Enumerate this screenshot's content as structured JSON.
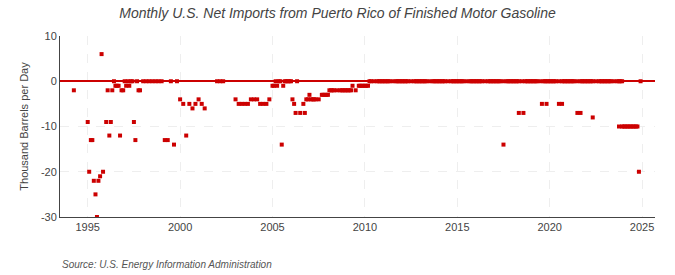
{
  "chart_data": {
    "type": "scatter",
    "title": "Monthly U.S. Net Imports from Puerto Rico of Finished Motor Gasoline",
    "ylabel": "Thousand Barrels per Day",
    "annotations": [
      "Source: U.S. Energy Information Administration"
    ],
    "color": "#cc0000",
    "marker": "square",
    "grid": true,
    "xlim": [
      1993.5,
      2025.7
    ],
    "ylim": [
      -30,
      10
    ],
    "xticks": [
      1995,
      2000,
      2005,
      2010,
      2015,
      2020,
      2025
    ],
    "yticks": [
      -30,
      -20,
      -10,
      0,
      10
    ],
    "x": [
      1994.25,
      1995.0,
      1995.08,
      1995.17,
      1995.25,
      1995.33,
      1995.42,
      1995.5,
      1995.58,
      1995.67,
      1995.75,
      1995.83,
      1996.0,
      1996.08,
      1996.17,
      1996.25,
      1996.33,
      1996.42,
      1996.5,
      1996.58,
      1996.67,
      1996.75,
      1996.83,
      1996.92,
      1997.0,
      1997.08,
      1997.17,
      1997.25,
      1997.33,
      1997.42,
      1997.5,
      1997.58,
      1997.67,
      1997.75,
      1997.83,
      1998.0,
      1998.17,
      1998.33,
      1998.5,
      1998.67,
      1998.83,
      1999.0,
      1999.17,
      1999.33,
      1999.5,
      1999.67,
      1999.83,
      2000.0,
      2000.17,
      2000.33,
      2000.5,
      2000.67,
      2000.83,
      2001.0,
      2001.17,
      2001.33,
      2002.0,
      2002.17,
      2002.33,
      2003.0,
      2003.17,
      2003.33,
      2003.5,
      2003.67,
      2003.83,
      2004.0,
      2004.17,
      2004.33,
      2004.5,
      2004.67,
      2004.83,
      2005.0,
      2005.08,
      2005.17,
      2005.25,
      2005.33,
      2005.42,
      2005.5,
      2005.58,
      2005.67,
      2005.75,
      2005.83,
      2005.92,
      2006.0,
      2006.08,
      2006.17,
      2006.25,
      2006.33,
      2006.5,
      2006.67,
      2006.75,
      2006.83,
      2006.92,
      2007.0,
      2007.08,
      2007.17,
      2007.25,
      2007.33,
      2007.5,
      2007.67,
      2007.75,
      2007.83,
      2007.92,
      2008.0,
      2008.08,
      2008.17,
      2008.25,
      2008.33,
      2008.5,
      2008.67,
      2008.75,
      2008.83,
      2008.92,
      2009.0,
      2009.08,
      2009.17,
      2009.25,
      2009.33,
      2009.5,
      2009.67,
      2009.75,
      2009.83,
      2009.92,
      2010.0,
      2010.08,
      2010.17,
      2010.25,
      2010.33,
      2010.5,
      2010.67,
      2010.75,
      2010.83,
      2010.92,
      2011.0,
      2011.08,
      2011.17,
      2011.25,
      2011.33,
      2011.5,
      2011.67,
      2011.75,
      2011.83,
      2011.92,
      2012.0,
      2012.08,
      2012.17,
      2012.25,
      2012.33,
      2012.5,
      2012.67,
      2012.75,
      2012.83,
      2012.92,
      2013.0,
      2013.08,
      2013.17,
      2013.25,
      2013.33,
      2013.5,
      2013.67,
      2013.75,
      2013.83,
      2013.92,
      2014.0,
      2014.08,
      2014.17,
      2014.25,
      2014.33,
      2014.5,
      2014.67,
      2014.75,
      2014.83,
      2014.92,
      2015.0,
      2015.08,
      2015.17,
      2015.25,
      2015.33,
      2015.5,
      2015.67,
      2015.75,
      2015.83,
      2015.92,
      2016.0,
      2016.08,
      2016.17,
      2016.25,
      2016.33,
      2016.5,
      2016.67,
      2016.75,
      2016.83,
      2016.92,
      2017.0,
      2017.08,
      2017.17,
      2017.25,
      2017.33,
      2017.5,
      2017.67,
      2017.75,
      2017.83,
      2017.92,
      2018.0,
      2018.08,
      2018.17,
      2018.25,
      2018.33,
      2018.5,
      2018.67,
      2018.75,
      2018.83,
      2018.92,
      2019.0,
      2019.08,
      2019.17,
      2019.25,
      2019.33,
      2019.5,
      2019.67,
      2019.75,
      2019.83,
      2019.92,
      2020.0,
      2020.08,
      2020.17,
      2020.25,
      2020.33,
      2020.5,
      2020.67,
      2020.75,
      2020.83,
      2020.92,
      2021.0,
      2021.08,
      2021.17,
      2021.25,
      2021.33,
      2021.5,
      2021.67,
      2021.75,
      2021.83,
      2021.92,
      2022.0,
      2022.08,
      2022.17,
      2022.25,
      2022.33,
      2022.5,
      2022.67,
      2022.75,
      2022.83,
      2022.92,
      2023.0,
      2023.08,
      2023.17,
      2023.25,
      2023.33,
      2023.5,
      2023.67,
      2023.75,
      2023.83,
      2023.92,
      2017.5,
      2018.33,
      2018.58,
      2019.58,
      2019.83,
      2020.5,
      2020.67,
      2021.5,
      2021.67,
      2022.33,
      2023.75,
      2023.92,
      2024.0,
      2024.08,
      2024.17,
      2024.25,
      2024.33,
      2024.42,
      2024.5,
      2024.58,
      2024.67,
      2024.75,
      2024.83,
      2024.92
    ],
    "values": [
      -2.0,
      -9.0,
      -20.0,
      -13.0,
      -13.0,
      -22.0,
      -25.0,
      -30.0,
      -22.0,
      -21.0,
      6.0,
      -20.0,
      -9.0,
      -2.0,
      -12.0,
      -9.0,
      -2.0,
      0.0,
      -1.0,
      -1.0,
      -1.0,
      -12.0,
      -2.0,
      -2.0,
      0.0,
      -1.0,
      0.0,
      -1.0,
      0.0,
      0.0,
      -9.0,
      -13.0,
      0.0,
      -2.0,
      -2.0,
      0.0,
      0.0,
      0.0,
      0.0,
      0.0,
      0.0,
      0.0,
      -13.0,
      -13.0,
      0.0,
      -14.0,
      0.0,
      -4.0,
      -5.0,
      -12.0,
      -5.0,
      -6.0,
      -5.0,
      -4.0,
      -5.0,
      -6.0,
      0.0,
      0.0,
      0.0,
      -4.0,
      -5.0,
      -5.0,
      -5.0,
      -5.0,
      -4.0,
      -4.0,
      -4.0,
      -5.0,
      -5.0,
      -5.0,
      -4.0,
      -1.0,
      -1.0,
      0.0,
      -1.0,
      0.0,
      0.0,
      -14.0,
      -1.0,
      0.0,
      0.0,
      0.0,
      0.0,
      0.0,
      -4.0,
      -5.0,
      -7.0,
      0.0,
      -7.0,
      -5.0,
      -7.0,
      -4.0,
      -4.0,
      -3.0,
      -4.0,
      -4.0,
      -4.0,
      -4.0,
      -4.0,
      -3.0,
      -3.0,
      -3.0,
      -3.0,
      -3.0,
      -2.0,
      -2.0,
      -2.0,
      -2.0,
      -2.0,
      -2.0,
      -2.0,
      -2.0,
      -2.0,
      -2.0,
      -2.0,
      -2.0,
      -2.0,
      -1.0,
      -2.0,
      -1.0,
      -1.0,
      -1.0,
      -1.0,
      -1.0,
      -1.0,
      -1.0,
      0.0,
      0.0,
      0.0,
      0.0,
      0.0,
      0.0,
      0.0,
      0.0,
      0.0,
      0.0,
      0.0,
      0.0,
      0.0,
      0.0,
      0.0,
      0.0,
      0.0,
      0.0,
      0.0,
      0.0,
      0.0,
      0.0,
      0.0,
      0.0,
      0.0,
      0.0,
      0.0,
      0.0,
      0.0,
      0.0,
      0.0,
      0.0,
      0.0,
      0.0,
      0.0,
      0.0,
      0.0,
      0.0,
      0.0,
      0.0,
      0.0,
      0.0,
      0.0,
      0.0,
      0.0,
      0.0,
      0.0,
      0.0,
      0.0,
      0.0,
      0.0,
      0.0,
      0.0,
      0.0,
      0.0,
      0.0,
      0.0,
      0.0,
      0.0,
      0.0,
      0.0,
      0.0,
      0.0,
      0.0,
      0.0,
      0.0,
      0.0,
      0.0,
      0.0,
      0.0,
      0.0,
      0.0,
      0.0,
      0.0,
      0.0,
      0.0,
      0.0,
      0.0,
      0.0,
      0.0,
      0.0,
      0.0,
      0.0,
      0.0,
      0.0,
      0.0,
      0.0,
      0.0,
      0.0,
      0.0,
      0.0,
      0.0,
      0.0,
      0.0,
      0.0,
      0.0,
      0.0,
      0.0,
      0.0,
      0.0,
      0.0,
      0.0,
      0.0,
      0.0,
      0.0,
      0.0,
      0.0,
      0.0,
      0.0,
      0.0,
      0.0,
      0.0,
      0.0,
      0.0,
      0.0,
      0.0,
      0.0,
      0.0,
      0.0,
      0.0,
      0.0,
      0.0,
      0.0,
      0.0,
      0.0,
      0.0,
      0.0,
      0.0,
      0.0,
      0.0,
      0.0,
      0.0,
      0.0,
      0.0,
      0.0,
      0.0,
      0.0,
      -14.0,
      -7.0,
      -7.0,
      -5.0,
      -5.0,
      -5.0,
      -5.0,
      -7.0,
      -7.0,
      -8.0,
      -10.0,
      -10.0,
      -10.0,
      -10.0,
      -10.0,
      -10.0,
      -10.0,
      -10.0,
      -10.0,
      -10.0,
      -10.0,
      -10.0,
      -20.0,
      0.0
    ]
  }
}
